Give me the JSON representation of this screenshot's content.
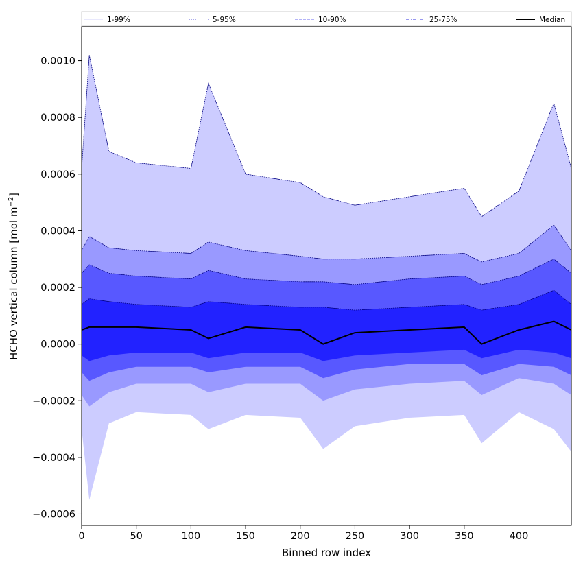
{
  "chart_data": {
    "type": "area",
    "xlabel": "Binned row index",
    "ylabel_main": "HCHO vertical column [mol m",
    "ylabel_sup": "−2",
    "ylabel_close": "]",
    "xlim": [
      0,
      448
    ],
    "ylim": [
      -0.00064,
      0.00112
    ],
    "x_ticks": [
      0,
      50,
      100,
      150,
      200,
      250,
      300,
      350,
      400
    ],
    "x_tick_labels": [
      "0",
      "50",
      "100",
      "150",
      "200",
      "250",
      "300",
      "350",
      "400"
    ],
    "y_ticks": [
      -0.0006,
      -0.0004,
      -0.0002,
      0.0,
      0.0002,
      0.0004,
      0.0006,
      0.0008,
      0.001
    ],
    "y_tick_labels": [
      "−0.0006",
      "−0.0004",
      "−0.0002",
      "0.0000",
      "0.0002",
      "0.0004",
      "0.0006",
      "0.0008",
      "0.0010"
    ],
    "legend": {
      "placement": "top, above axes, single row",
      "entries": [
        {
          "label": "1-99%",
          "color": "#d0d0f8",
          "style": "solid-thin"
        },
        {
          "label": "5-95%",
          "color": "#5a5ad8",
          "style": "dotted"
        },
        {
          "label": "10-90%",
          "color": "#6a6af0",
          "style": "dashed"
        },
        {
          "label": "25-75%",
          "color": "#3030e0",
          "style": "dashdot"
        },
        {
          "label": "Median",
          "color": "#000000",
          "style": "solid-thick"
        }
      ]
    },
    "band_colors": {
      "p1_99": "#ccccff",
      "p5_95": "#9999ff",
      "p10_90": "#5858ff",
      "p25_75": "#2222ff",
      "median": "#000000",
      "outline": "#000080"
    },
    "series": [
      {
        "name": "1-99%",
        "x": [
          0,
          7,
          25,
          50,
          100,
          116,
          150,
          200,
          221,
          250,
          300,
          350,
          366,
          400,
          432,
          448
        ],
        "upper": [
          0.00062,
          0.00102,
          0.00068,
          0.00064,
          0.00062,
          0.00092,
          0.0006,
          0.00057,
          0.00052,
          0.00049,
          0.00052,
          0.00055,
          0.00045,
          0.00054,
          0.00085,
          0.00062
        ],
        "lower": [
          -0.0003,
          -0.00055,
          -0.00028,
          -0.00024,
          -0.00025,
          -0.0003,
          -0.00025,
          -0.00026,
          -0.00037,
          -0.00029,
          -0.00026,
          -0.00025,
          -0.00035,
          -0.00024,
          -0.0003,
          -0.00038
        ]
      },
      {
        "name": "5-95%",
        "x": [
          0,
          7,
          25,
          50,
          100,
          116,
          150,
          200,
          221,
          250,
          300,
          350,
          366,
          400,
          432,
          448
        ],
        "upper": [
          0.00033,
          0.00038,
          0.00034,
          0.00033,
          0.00032,
          0.00036,
          0.00033,
          0.00031,
          0.0003,
          0.0003,
          0.00031,
          0.00032,
          0.00029,
          0.00032,
          0.00042,
          0.00033
        ],
        "lower": [
          -0.00018,
          -0.00022,
          -0.00017,
          -0.00014,
          -0.00014,
          -0.00017,
          -0.00014,
          -0.00014,
          -0.0002,
          -0.00016,
          -0.00014,
          -0.00013,
          -0.00018,
          -0.00012,
          -0.00014,
          -0.00018
        ]
      },
      {
        "name": "10-90%",
        "x": [
          0,
          7,
          25,
          50,
          100,
          116,
          150,
          200,
          221,
          250,
          300,
          350,
          366,
          400,
          432,
          448
        ],
        "upper": [
          0.00025,
          0.00028,
          0.00025,
          0.00024,
          0.00023,
          0.00026,
          0.00023,
          0.00022,
          0.00022,
          0.00021,
          0.00023,
          0.00024,
          0.00021,
          0.00024,
          0.0003,
          0.00025
        ],
        "lower": [
          -0.0001,
          -0.00013,
          -0.0001,
          -8e-05,
          -8e-05,
          -0.0001,
          -8e-05,
          -8e-05,
          -0.00012,
          -9e-05,
          -7e-05,
          -7e-05,
          -0.00011,
          -7e-05,
          -8e-05,
          -0.00011
        ]
      },
      {
        "name": "25-75%",
        "x": [
          0,
          7,
          25,
          50,
          100,
          116,
          150,
          200,
          221,
          250,
          300,
          350,
          366,
          400,
          432,
          448
        ],
        "upper": [
          0.00014,
          0.00016,
          0.00015,
          0.00014,
          0.00013,
          0.00015,
          0.00014,
          0.00013,
          0.00013,
          0.00012,
          0.00013,
          0.00014,
          0.00012,
          0.00014,
          0.00019,
          0.00014
        ],
        "lower": [
          -4e-05,
          -6e-05,
          -4e-05,
          -3e-05,
          -3e-05,
          -5e-05,
          -3e-05,
          -3e-05,
          -6e-05,
          -4e-05,
          -3e-05,
          -2e-05,
          -5e-05,
          -2e-05,
          -3e-05,
          -5e-05
        ]
      },
      {
        "name": "Median",
        "x": [
          0,
          7,
          25,
          50,
          100,
          116,
          150,
          200,
          221,
          250,
          300,
          350,
          366,
          400,
          432,
          448
        ],
        "values": [
          5e-05,
          6e-05,
          6e-05,
          6e-05,
          5e-05,
          2e-05,
          6e-05,
          5e-05,
          0.0,
          4e-05,
          5e-05,
          6e-05,
          0.0,
          5e-05,
          8e-05,
          5e-05
        ]
      }
    ]
  }
}
